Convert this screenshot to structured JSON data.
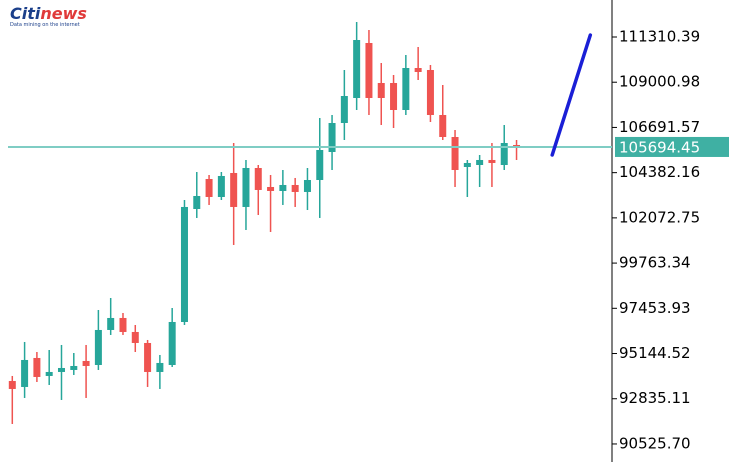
{
  "logo": {
    "brand_a": "Citi",
    "brand_b": "news",
    "tagline": "Data mining on the internet"
  },
  "chart_data": {
    "type": "candlestick",
    "up_color": "#26a69a",
    "down_color": "#ef5350",
    "open": [
      93742,
      93436,
      94917,
      93998,
      94202,
      94304,
      94764,
      94559,
      96347,
      96960,
      96245,
      95683,
      94202,
      94559,
      96755,
      102526,
      104058,
      103139,
      104365,
      102629,
      104620,
      103650,
      103446,
      103752,
      103395,
      104007,
      105437,
      106918,
      108195,
      111004,
      108961,
      108961,
      107582,
      109727,
      109625,
      107327,
      106203,
      104671,
      104773,
      105029,
      104773,
      105795
    ],
    "high": [
      93998,
      95734,
      95223,
      95325,
      95581,
      95172,
      95581,
      97368,
      97981,
      97215,
      96602,
      95836,
      95070,
      97470,
      102986,
      104416,
      104263,
      104416,
      105897,
      105029,
      104773,
      104263,
      104518,
      104110,
      104620,
      107174,
      107327,
      109625,
      112076,
      111668,
      109983,
      109370,
      110391,
      110800,
      109880,
      108859,
      106561,
      105029,
      105284,
      105897,
      106816,
      106050
    ],
    "low": [
      91546,
      92874,
      93691,
      93538,
      92772,
      94049,
      92874,
      94304,
      96092,
      96092,
      95223,
      93436,
      93334,
      94457,
      96602,
      102067,
      102731,
      102986,
      100688,
      101454,
      102220,
      101352,
      102731,
      102629,
      102475,
      102067,
      104518,
      106050,
      107582,
      107327,
      106816,
      106663,
      107327,
      109114,
      106969,
      106050,
      103650,
      103139,
      103650,
      103650,
      104518,
      105029
    ],
    "close": [
      93334,
      94815,
      93947,
      94202,
      94406,
      94508,
      94508,
      96347,
      96960,
      96245,
      95683,
      94202,
      94662,
      96755,
      102629,
      103190,
      103139,
      104212,
      102629,
      104620,
      103497,
      103446,
      103752,
      103395,
      104007,
      105539,
      106918,
      108297,
      111157,
      108195,
      108195,
      107582,
      109727,
      109523,
      107327,
      106203,
      104518,
      104876,
      105029,
      104876,
      105897,
      105642
    ],
    "current_price": 105694.45,
    "current_price_color": "#7fcdc4",
    "projection": {
      "x": [
        43.9,
        47
      ],
      "values": [
        105284,
        111413
      ],
      "color": "#1a1fd6"
    },
    "xlim": [
      -1,
      48.6
    ],
    "ylim": [
      89400,
      113200
    ],
    "yticks": [
      111310.39,
      109000.98,
      106691.57,
      104382.16,
      102072.75,
      99763.34,
      97453.93,
      95144.52,
      92835.11,
      {
        "value": 90525.7,
        "label": "90525.70"
      }
    ]
  }
}
